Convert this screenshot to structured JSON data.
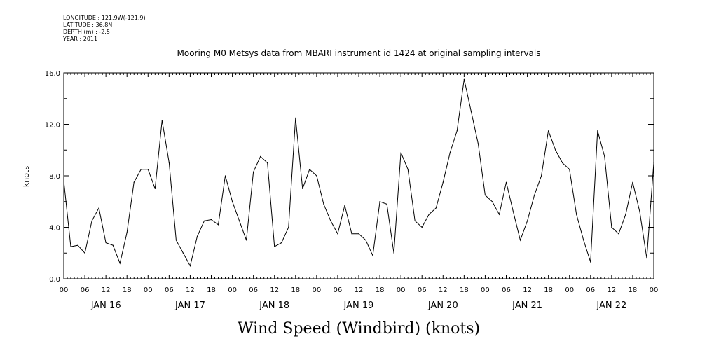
{
  "meta": {
    "longitude": "LONGITUDE : 121.9W(-121.9)",
    "latitude": "LATITUDE : 36.8N",
    "depth": "DEPTH (m) : -2.5",
    "year": "YEAR : 2011"
  },
  "chart_data": {
    "type": "line",
    "title": "Mooring M0 Metsys data from MBARI instrument id 1424 at original sampling intervals",
    "xlabel": "Wind Speed (Windbird) (knots)",
    "ylabel": "knots",
    "ylim": [
      0,
      16
    ],
    "yticks": [
      "0.0",
      "4.0",
      "8.0",
      "12.0",
      "16.0"
    ],
    "xlim_hours": [
      0,
      168
    ],
    "hour_tick_labels": [
      "00",
      "06",
      "12",
      "18",
      "00",
      "06",
      "12",
      "18",
      "00",
      "06",
      "12",
      "18",
      "00",
      "06",
      "12",
      "18",
      "00",
      "06",
      "12",
      "18",
      "00",
      "06",
      "12",
      "18",
      "00",
      "06",
      "12",
      "18",
      "00"
    ],
    "day_labels": [
      "JAN 16",
      "JAN 17",
      "JAN 18",
      "JAN 19",
      "JAN 20",
      "JAN 21",
      "JAN 22"
    ],
    "grid": false,
    "series": [
      {
        "x": [
          0,
          2,
          4,
          6,
          8,
          10,
          12,
          14,
          16,
          18,
          20,
          22,
          24,
          26,
          28,
          30,
          32,
          34,
          36,
          38,
          40,
          42,
          44,
          46,
          48,
          50,
          52,
          54,
          56,
          58,
          60,
          62,
          64,
          66,
          68,
          70,
          72,
          74,
          76,
          78,
          80,
          82,
          84,
          86,
          88,
          90,
          92,
          94,
          96,
          98,
          100,
          102,
          104,
          106,
          108,
          110,
          112,
          114,
          116,
          118,
          120,
          122,
          124,
          126,
          128,
          130,
          132,
          134,
          136,
          138,
          140,
          142,
          144,
          146,
          148,
          150,
          152,
          154,
          156,
          158,
          160,
          162,
          164,
          166,
          168
        ],
        "y": [
          7.6,
          2.5,
          2.6,
          2.0,
          4.5,
          5.5,
          2.8,
          2.6,
          1.2,
          3.6,
          7.5,
          8.5,
          8.5,
          7.0,
          12.3,
          9.0,
          3.0,
          2.0,
          1.0,
          3.3,
          4.5,
          4.6,
          4.2,
          8.0,
          6.0,
          4.5,
          3.0,
          8.3,
          9.5,
          9.0,
          2.5,
          2.8,
          4.0,
          12.5,
          7.0,
          8.5,
          8.0,
          5.8,
          4.5,
          3.5,
          5.7,
          3.5,
          3.5,
          3.0,
          1.8,
          6.0,
          5.8,
          2.0,
          9.8,
          8.5,
          4.5,
          4.0,
          5.0,
          5.5,
          7.5,
          9.8,
          11.5,
          15.5,
          13.0,
          10.5,
          6.5,
          6.0,
          5.0,
          7.5,
          5.2,
          3.0,
          4.5,
          6.5,
          8.0,
          11.5,
          10.0,
          9.0,
          8.5,
          5.0,
          3.0,
          1.3,
          11.5,
          9.5,
          4.0,
          3.5,
          5.0,
          7.5,
          5.2,
          1.6,
          9.0
        ]
      }
    ]
  }
}
